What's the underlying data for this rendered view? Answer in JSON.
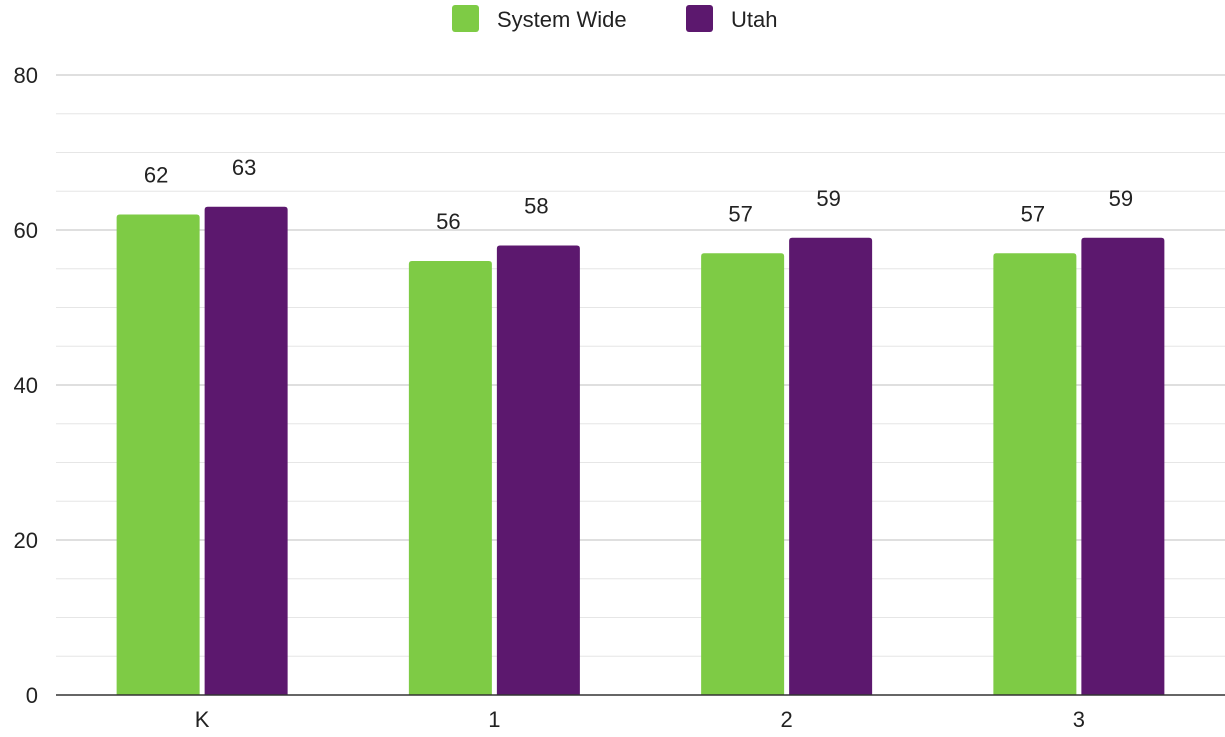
{
  "chart_data": {
    "type": "bar",
    "categories": [
      "K",
      "1",
      "2",
      "3"
    ],
    "series": [
      {
        "name": "System Wide",
        "values": [
          62,
          56,
          57,
          57
        ],
        "color": "#7ecb45"
      },
      {
        "name": "Utah",
        "values": [
          63,
          58,
          59,
          59
        ],
        "color": "#5c186e"
      }
    ],
    "ylim": [
      0,
      80
    ],
    "y_ticks": [
      0,
      20,
      40,
      60,
      80
    ],
    "y_tick_labels": [
      "0",
      "20",
      "40",
      "60",
      "80"
    ],
    "minor_gridlines_per_major": 3,
    "grid": true,
    "legend_position": "top-center",
    "data_labels": true,
    "title": "",
    "xlabel": "",
    "ylabel": ""
  }
}
